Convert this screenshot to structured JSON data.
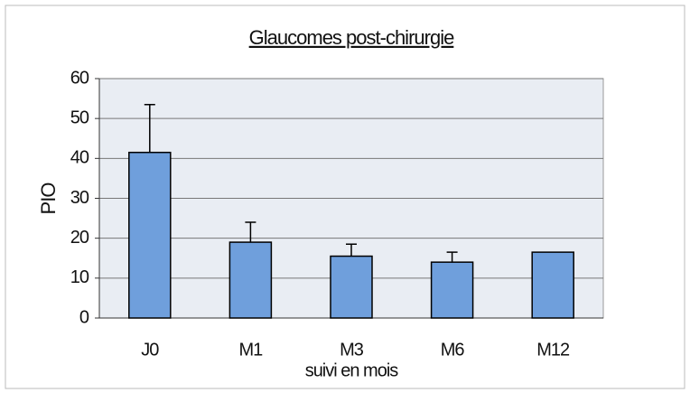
{
  "chart_data": {
    "type": "bar",
    "title": "Glaucomes post-chirurgie",
    "x_label": "suivi en mois",
    "y_label": "PIO",
    "categories": [
      "J0",
      "M1",
      "M3",
      "M6",
      "M12"
    ],
    "values": [
      41.5,
      19,
      15.5,
      14,
      16.5
    ],
    "errors": [
      12,
      5,
      3,
      2.5,
      null
    ],
    "color": "#6f9fdc",
    "ylim": [
      0,
      60
    ],
    "yticks": [
      0,
      10,
      20,
      30,
      40,
      50,
      60
    ],
    "grid": true
  }
}
